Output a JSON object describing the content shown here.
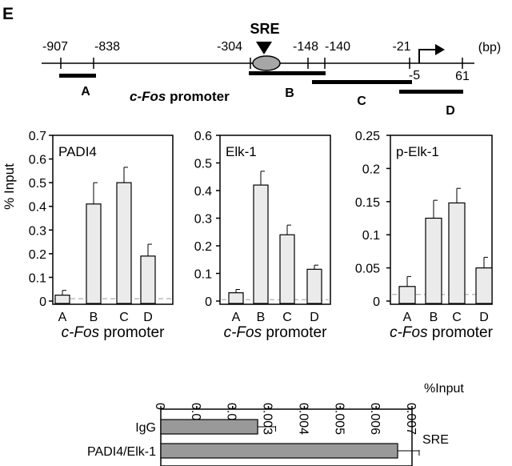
{
  "figure": {
    "panel_label": "E"
  },
  "promoter_map": {
    "sre_label": "SRE",
    "unit_label": "(bp)",
    "caption_italic": "c-Fos",
    "caption_rest": " promoter",
    "positions_above": [
      "-907",
      "-838",
      "-304",
      "-148",
      "-140",
      "-21"
    ],
    "positions_below": [
      "-5",
      "61"
    ],
    "fragments": [
      "A",
      "B",
      "C",
      "D"
    ]
  },
  "chart_data": [
    {
      "type": "bar",
      "title": "PADI4",
      "ylabel": "% Input",
      "xlabel_italic": "c-Fos",
      "xlabel_rest": " promoter",
      "categories": [
        "A",
        "B",
        "C",
        "D"
      ],
      "values": [
        0.025,
        0.41,
        0.5,
        0.19
      ],
      "errors": [
        0.02,
        0.09,
        0.065,
        0.05
      ],
      "ylim": [
        0,
        0.7
      ],
      "yticks": [
        "0",
        "0.1",
        "0.2",
        "0.3",
        "0.4",
        "0.5",
        "0.6",
        "0.7"
      ],
      "baseline": 0.01,
      "bar_color": "#ebebeb"
    },
    {
      "type": "bar",
      "title": "Elk-1",
      "ylabel": "",
      "xlabel_italic": "c-Fos",
      "xlabel_rest": " promoter",
      "categories": [
        "A",
        "B",
        "C",
        "D"
      ],
      "values": [
        0.03,
        0.42,
        0.24,
        0.115
      ],
      "errors": [
        0.012,
        0.05,
        0.035,
        0.015
      ],
      "ylim": [
        0,
        0.6
      ],
      "yticks": [
        "0",
        "0.1",
        "0.2",
        "0.3",
        "0.4",
        "0.5",
        "0.6"
      ],
      "baseline": 0.005,
      "bar_color": "#ebebeb"
    },
    {
      "type": "bar",
      "title": "p-Elk-1",
      "ylabel": "",
      "xlabel_italic": "c-Fos",
      "xlabel_rest": " promoter",
      "categories": [
        "A",
        "B",
        "C",
        "D"
      ],
      "values": [
        0.022,
        0.125,
        0.148,
        0.05
      ],
      "errors": [
        0.015,
        0.027,
        0.022,
        0.016
      ],
      "ylim": [
        0,
        0.25
      ],
      "yticks": [
        "0",
        "0.05",
        "0.1",
        "0.15",
        "0.2",
        "0.25"
      ],
      "baseline": 0.01,
      "bar_color": "#ebebeb"
    },
    {
      "type": "bar",
      "orientation": "horizontal",
      "axis_label": "%Input",
      "side_label": "SRE",
      "categories": [
        "IgG",
        "PADI4/Elk-1"
      ],
      "values": [
        0.0027,
        0.0066
      ],
      "errors": [
        0.0005,
        0.0006
      ],
      "xlim": [
        0,
        0.007
      ],
      "xticks": [
        "0",
        "0.001",
        "0.002",
        "0.003",
        "0.004",
        "0.005",
        "0.006",
        "0.007"
      ],
      "bar_color": "#999999"
    }
  ]
}
